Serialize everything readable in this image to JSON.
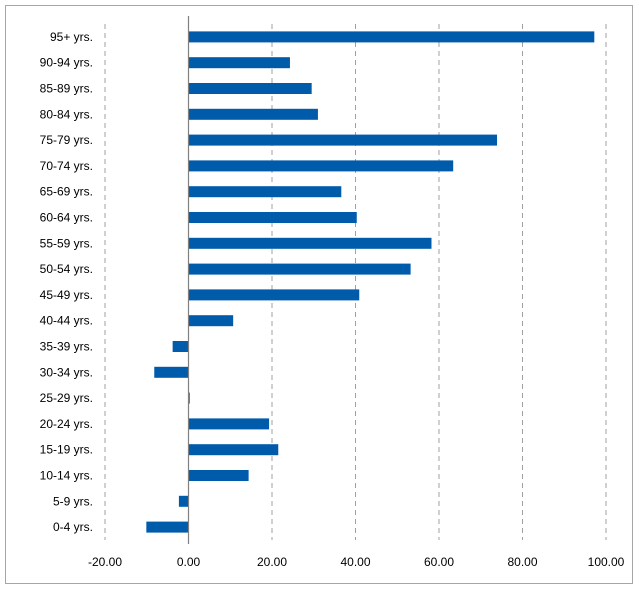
{
  "chart_data": {
    "type": "bar",
    "orientation": "horizontal",
    "categories": [
      "0-4 yrs.",
      "5-9 yrs.",
      "10-14 yrs.",
      "15-19 yrs.",
      "20-24 yrs.",
      "25-29 yrs.",
      "30-34 yrs.",
      "35-39 yrs.",
      "40-44 yrs.",
      "45-49 yrs.",
      "50-54 yrs.",
      "55-59 yrs.",
      "60-64 yrs.",
      "65-69 yrs.",
      "70-74 yrs.",
      "75-79 yrs.",
      "80-84 yrs.",
      "85-89 yrs.",
      "90-94 yrs.",
      "95+ yrs."
    ],
    "values": [
      -10.1,
      -2.3,
      14.4,
      21.5,
      19.3,
      0.3,
      -8.2,
      -3.8,
      10.7,
      40.9,
      53.2,
      58.2,
      40.3,
      36.6,
      63.4,
      73.9,
      31.0,
      29.5,
      24.3,
      97.2
    ],
    "title": "",
    "xlabel": "",
    "ylabel": "",
    "xlim": [
      -20,
      100
    ],
    "x_ticks": [
      "-20.00",
      "0.00",
      "20.00",
      "40.00",
      "60.00",
      "80.00",
      "100.00"
    ],
    "x_tick_values": [
      -20,
      0,
      20,
      40,
      60,
      80,
      100
    ],
    "grid": "vertical dashed",
    "legend": "none",
    "colors": {
      "bar": "#005bab",
      "grid": "#a0a0a0",
      "zero_axis": "#808080",
      "frame": "#a6a6a6"
    }
  }
}
